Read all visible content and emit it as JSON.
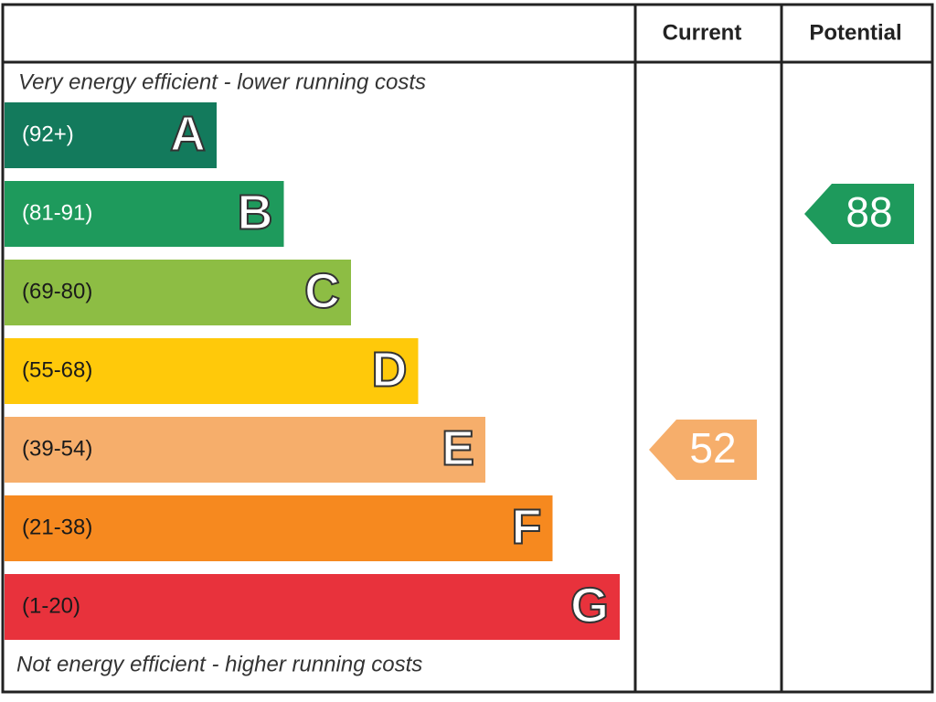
{
  "chart_data": {
    "type": "energy-rating",
    "columns": [
      "Current",
      "Potential"
    ],
    "top_note": "Very energy efficient - lower running costs",
    "bottom_note": "Not energy efficient - higher running costs",
    "bands": [
      {
        "range": "(92+)",
        "letter": "A",
        "min": 92,
        "color": "#137a5c",
        "text_color": "#ffffff"
      },
      {
        "range": "(81-91)",
        "letter": "B",
        "min": 81,
        "color": "#1e9a5c",
        "text_color": "#ffffff"
      },
      {
        "range": "(69-80)",
        "letter": "C",
        "min": 69,
        "color": "#8dbd44",
        "text_color": "#1a1a1a"
      },
      {
        "range": "(55-68)",
        "letter": "D",
        "min": 55,
        "color": "#ffc90a",
        "text_color": "#1a1a1a"
      },
      {
        "range": "(39-54)",
        "letter": "E",
        "min": 39,
        "color": "#f6ae6b",
        "text_color": "#1a1a1a"
      },
      {
        "range": "(21-38)",
        "letter": "F",
        "min": 21,
        "color": "#f6891f",
        "text_color": "#1a1a1a"
      },
      {
        "range": "(1-20)",
        "letter": "G",
        "min": 1,
        "color": "#e8323c",
        "text_color": "#1a1a1a"
      }
    ],
    "current": {
      "value": 52,
      "color": "#f6ae6b"
    },
    "potential": {
      "value": 88,
      "color": "#1e9a5c"
    }
  }
}
